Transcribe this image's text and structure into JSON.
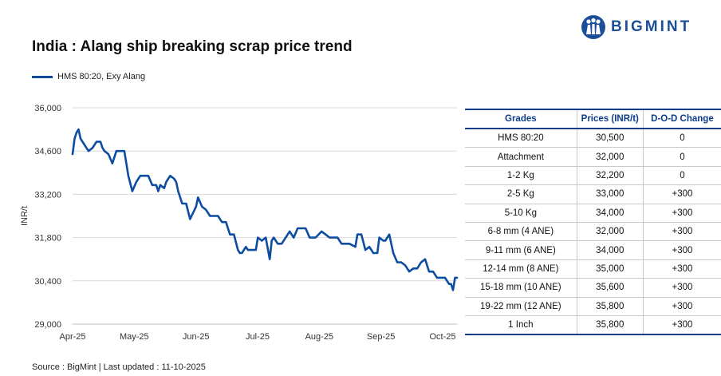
{
  "header": {
    "title": "India : Alang ship breaking scrap price trend",
    "logo_text": "BIGMINT"
  },
  "legend": {
    "series_label": "HMS 80:20, Exy Alang"
  },
  "colors": {
    "line": "#0d4da1",
    "brand": "#1d4e9a",
    "table_accent": "#0b3c8c",
    "positive": "#1f9a3c"
  },
  "chart_data": {
    "type": "line",
    "ylabel": "INR/t",
    "ylim": [
      29000,
      36000
    ],
    "yticks": [
      "36,000",
      "34,600",
      "33,200",
      "31,800",
      "30,400",
      "29,000"
    ],
    "ytick_values": [
      36000,
      34600,
      33200,
      31800,
      30400,
      29000
    ],
    "x_tick_labels": [
      "Apr-25",
      "May-25",
      "Jun-25",
      "Jul-25",
      "Aug-25",
      "Sep-25",
      "Oct-25"
    ],
    "x_range": [
      "2025-04-01",
      "2025-10-11"
    ],
    "grid": true,
    "series": [
      {
        "name": "HMS 80:20, Exy Alang",
        "x": [
          "2025-04-01",
          "2025-04-02",
          "2025-04-03",
          "2025-04-04",
          "2025-04-05",
          "2025-04-07",
          "2025-04-09",
          "2025-04-11",
          "2025-04-13",
          "2025-04-15",
          "2025-04-16",
          "2025-04-17",
          "2025-04-19",
          "2025-04-21",
          "2025-04-23",
          "2025-04-24",
          "2025-04-25",
          "2025-04-27",
          "2025-04-29",
          "2025-05-01",
          "2025-05-03",
          "2025-05-05",
          "2025-05-07",
          "2025-05-09",
          "2025-05-11",
          "2025-05-13",
          "2025-05-14",
          "2025-05-15",
          "2025-05-17",
          "2025-05-18",
          "2025-05-19",
          "2025-05-20",
          "2025-05-22",
          "2025-05-23",
          "2025-05-24",
          "2025-05-26",
          "2025-05-28",
          "2025-05-30",
          "2025-06-02",
          "2025-06-03",
          "2025-06-05",
          "2025-06-07",
          "2025-06-09",
          "2025-06-11",
          "2025-06-13",
          "2025-06-15",
          "2025-06-17",
          "2025-06-19",
          "2025-06-21",
          "2025-06-23",
          "2025-06-24",
          "2025-06-25",
          "2025-06-27",
          "2025-06-28",
          "2025-06-30",
          "2025-07-02",
          "2025-07-03",
          "2025-07-05",
          "2025-07-07",
          "2025-07-09",
          "2025-07-10",
          "2025-07-11",
          "2025-07-13",
          "2025-07-15",
          "2025-07-17",
          "2025-07-19",
          "2025-07-21",
          "2025-07-23",
          "2025-07-25",
          "2025-07-27",
          "2025-07-29",
          "2025-08-01",
          "2025-08-04",
          "2025-08-06",
          "2025-08-08",
          "2025-08-10",
          "2025-08-12",
          "2025-08-14",
          "2025-08-16",
          "2025-08-18",
          "2025-08-21",
          "2025-08-22",
          "2025-08-24",
          "2025-08-26",
          "2025-08-28",
          "2025-08-30",
          "2025-09-01",
          "2025-09-02",
          "2025-09-04",
          "2025-09-05",
          "2025-09-07",
          "2025-09-09",
          "2025-09-11",
          "2025-09-13",
          "2025-09-15",
          "2025-09-17",
          "2025-09-19",
          "2025-09-21",
          "2025-09-23",
          "2025-09-25",
          "2025-09-27",
          "2025-09-29",
          "2025-10-01",
          "2025-10-03",
          "2025-10-05",
          "2025-10-07",
          "2025-10-08",
          "2025-10-09",
          "2025-10-10",
          "2025-10-11"
        ],
        "values": [
          34500,
          35000,
          35200,
          35300,
          35000,
          34800,
          34600,
          34700,
          34900,
          34900,
          34700,
          34600,
          34500,
          34200,
          34600,
          34600,
          34600,
          34600,
          33800,
          33300,
          33600,
          33800,
          33800,
          33800,
          33500,
          33500,
          33300,
          33500,
          33400,
          33600,
          33700,
          33800,
          33700,
          33600,
          33300,
          32900,
          32900,
          32400,
          32800,
          33100,
          32800,
          32700,
          32500,
          32500,
          32500,
          32300,
          32300,
          31900,
          31900,
          31400,
          31300,
          31300,
          31500,
          31400,
          31400,
          31400,
          31800,
          31700,
          31800,
          31100,
          31700,
          31800,
          31600,
          31600,
          31800,
          32000,
          31800,
          32100,
          32100,
          32100,
          31800,
          31800,
          32000,
          31900,
          31800,
          31800,
          31800,
          31600,
          31600,
          31600,
          31500,
          31900,
          31900,
          31400,
          31500,
          31300,
          31300,
          31800,
          31700,
          31700,
          31900,
          31300,
          31000,
          31000,
          30900,
          30700,
          30800,
          30800,
          31000,
          31100,
          30700,
          30700,
          30500,
          30500,
          30500,
          30300,
          30300,
          30100,
          30500,
          30500
        ]
      }
    ]
  },
  "table": {
    "headers": [
      "Grades",
      "Prices (INR/t)",
      "D-O-D Change"
    ],
    "rows": [
      {
        "grade": "HMS 80:20",
        "price": "30,500",
        "change": "0",
        "trend": "flat"
      },
      {
        "grade": "Attachment",
        "price": "32,000",
        "change": "0",
        "trend": "flat"
      },
      {
        "grade": "1-2 Kg",
        "price": "32,200",
        "change": "0",
        "trend": "flat"
      },
      {
        "grade": "2-5 Kg",
        "price": "33,000",
        "change": "+300",
        "trend": "up"
      },
      {
        "grade": "5-10 Kg",
        "price": "34,000",
        "change": "+300",
        "trend": "up"
      },
      {
        "grade": "6-8 mm (4 ANE)",
        "price": "32,000",
        "change": "+300",
        "trend": "up"
      },
      {
        "grade": "9-11 mm (6 ANE)",
        "price": "34,000",
        "change": "+300",
        "trend": "up"
      },
      {
        "grade": "12-14 mm (8 ANE)",
        "price": "35,000",
        "change": "+300",
        "trend": "up"
      },
      {
        "grade": "15-18 mm (10 ANE)",
        "price": "35,600",
        "change": "+300",
        "trend": "up"
      },
      {
        "grade": "19-22 mm (12 ANE)",
        "price": "35,800",
        "change": "+300",
        "trend": "up"
      },
      {
        "grade": "1 Inch",
        "price": "35,800",
        "change": "+300",
        "trend": "up"
      }
    ]
  },
  "footer": {
    "source": "Source : BigMint | Last updated : 11-10-2025"
  }
}
